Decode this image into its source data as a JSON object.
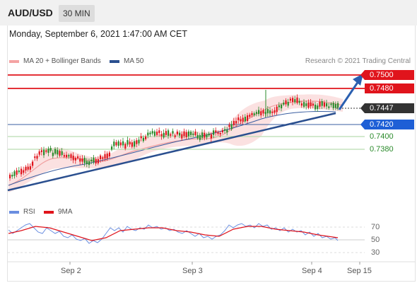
{
  "header": {
    "symbol": "AUD/USD",
    "timeframe": "30 MIN"
  },
  "datetime": "Monday, September 6, 2021 1:47:00 AM CET",
  "legend": {
    "ma": {
      "label": "MA 20 + Bollinger Bands",
      "color": "#f4a3a3"
    },
    "ma50": {
      "label": "MA 50",
      "color": "#2a4f8f"
    }
  },
  "credit": "Research © 2021 Trading Central",
  "levels": [
    {
      "value": "0.7500",
      "style": "red"
    },
    {
      "value": "0.7480",
      "style": "red"
    },
    {
      "value": "0.7447",
      "style": "dark"
    },
    {
      "value": "0.7420",
      "style": "blue"
    },
    {
      "value": "0.7400",
      "style": "green"
    },
    {
      "value": "0.7380",
      "style": "green"
    }
  ],
  "rsi_legend": {
    "rsi": {
      "label": "RSI",
      "color": "#6a8ee0"
    },
    "ma9": {
      "label": "9MA",
      "color": "#e0141c"
    }
  },
  "rsi_levels": [
    "70",
    "50",
    "30"
  ],
  "x_labels": [
    "Sep 2",
    "Sep 3",
    "Sep 4",
    "Sep 15"
  ],
  "colors": {
    "up": "#2a8a2a",
    "down": "#e0141c",
    "trend": "#2a4f8f",
    "arrow": "#2a5fb0"
  }
}
